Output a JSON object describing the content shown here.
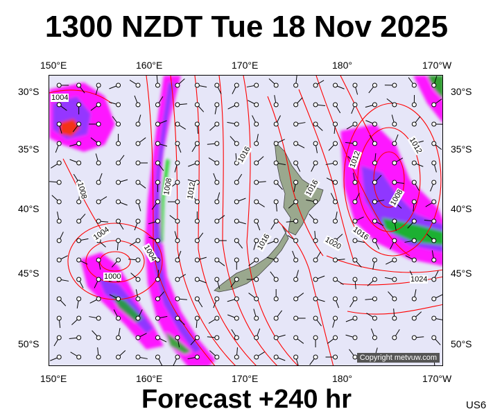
{
  "title": "1300 NZDT Tue 18 Nov 2025",
  "forecast_label": "Forecast +240 hr",
  "model_code": "US6",
  "copyright": "Copyright metvuw.com",
  "lon_labels": [
    "150°E",
    "160°E",
    "170°E",
    "180°",
    "170°W"
  ],
  "lat_labels": [
    "30°S",
    "35°S",
    "40°S",
    "45°S",
    "50°S"
  ],
  "isobar_labels": [
    "1004",
    "1008",
    "1004",
    "1000",
    "1004",
    "1008",
    "1012",
    "1016",
    "1016",
    "1016",
    "1012",
    "1008",
    "1012",
    "1016",
    "1020",
    "1024"
  ],
  "colors": {
    "ocean": "#e6e6f8",
    "land": "#9aa88e",
    "isobar": "#ff0000",
    "rain_light": "#ff00ff",
    "rain_mid": "#7b3cff",
    "rain_heavy": "#00e000"
  }
}
